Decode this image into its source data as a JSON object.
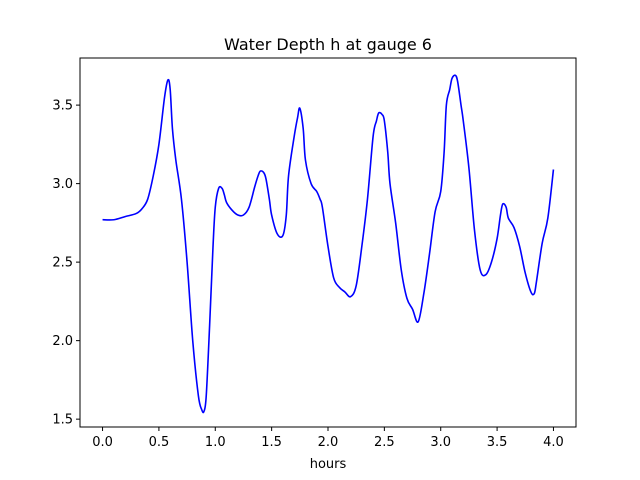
{
  "chart_data": {
    "type": "line",
    "title": "Water Depth h at gauge 6",
    "xlabel": "hours",
    "ylabel": "",
    "xlim": [
      -0.2,
      4.2
    ],
    "ylim": [
      1.45,
      3.8
    ],
    "xticks": [
      0.0,
      0.5,
      1.0,
      1.5,
      2.0,
      2.5,
      3.0,
      3.5,
      4.0
    ],
    "xtick_labels": [
      "0.0",
      "0.5",
      "1.0",
      "1.5",
      "2.0",
      "2.5",
      "3.0",
      "3.5",
      "4.0"
    ],
    "yticks": [
      1.5,
      2.0,
      2.5,
      3.0,
      3.5
    ],
    "ytick_labels": [
      "1.5",
      "2.0",
      "2.5",
      "3.0",
      "3.5"
    ],
    "grid": false,
    "series": [
      {
        "color": "#0000ff",
        "x": [
          0.0,
          0.1,
          0.2,
          0.3,
          0.35,
          0.4,
          0.45,
          0.5,
          0.55,
          0.58,
          0.6,
          0.62,
          0.65,
          0.7,
          0.75,
          0.8,
          0.85,
          0.88,
          0.9,
          0.92,
          0.95,
          0.98,
          1.0,
          1.03,
          1.06,
          1.08,
          1.1,
          1.15,
          1.2,
          1.25,
          1.3,
          1.35,
          1.38,
          1.4,
          1.43,
          1.45,
          1.48,
          1.5,
          1.55,
          1.6,
          1.63,
          1.65,
          1.7,
          1.73,
          1.75,
          1.78,
          1.8,
          1.85,
          1.9,
          1.93,
          1.95,
          2.0,
          2.05,
          2.1,
          2.15,
          2.2,
          2.25,
          2.3,
          2.35,
          2.4,
          2.43,
          2.45,
          2.48,
          2.5,
          2.53,
          2.55,
          2.6,
          2.65,
          2.7,
          2.75,
          2.8,
          2.85,
          2.9,
          2.95,
          3.0,
          3.03,
          3.05,
          3.08,
          3.1,
          3.13,
          3.15,
          3.18,
          3.2,
          3.25,
          3.3,
          3.35,
          3.4,
          3.45,
          3.5,
          3.53,
          3.55,
          3.58,
          3.6,
          3.65,
          3.7,
          3.75,
          3.8,
          3.83,
          3.85,
          3.9,
          3.95,
          4.0
        ],
        "y": [
          2.77,
          2.77,
          2.79,
          2.81,
          2.84,
          2.9,
          3.05,
          3.25,
          3.55,
          3.66,
          3.6,
          3.35,
          3.15,
          2.9,
          2.5,
          2.0,
          1.65,
          1.56,
          1.55,
          1.65,
          2.1,
          2.6,
          2.85,
          2.97,
          2.97,
          2.93,
          2.88,
          2.83,
          2.8,
          2.8,
          2.85,
          2.98,
          3.05,
          3.08,
          3.07,
          3.03,
          2.9,
          2.8,
          2.68,
          2.67,
          2.8,
          3.05,
          3.3,
          3.42,
          3.48,
          3.35,
          3.15,
          3.0,
          2.95,
          2.9,
          2.85,
          2.6,
          2.4,
          2.34,
          2.31,
          2.28,
          2.35,
          2.6,
          2.9,
          3.3,
          3.4,
          3.45,
          3.44,
          3.4,
          3.2,
          3.0,
          2.75,
          2.45,
          2.27,
          2.2,
          2.12,
          2.3,
          2.55,
          2.82,
          2.95,
          3.2,
          3.5,
          3.6,
          3.67,
          3.69,
          3.65,
          3.5,
          3.4,
          3.1,
          2.7,
          2.45,
          2.42,
          2.5,
          2.65,
          2.8,
          2.87,
          2.85,
          2.78,
          2.72,
          2.6,
          2.43,
          2.31,
          2.3,
          2.38,
          2.62,
          2.78,
          3.09
        ]
      }
    ]
  }
}
